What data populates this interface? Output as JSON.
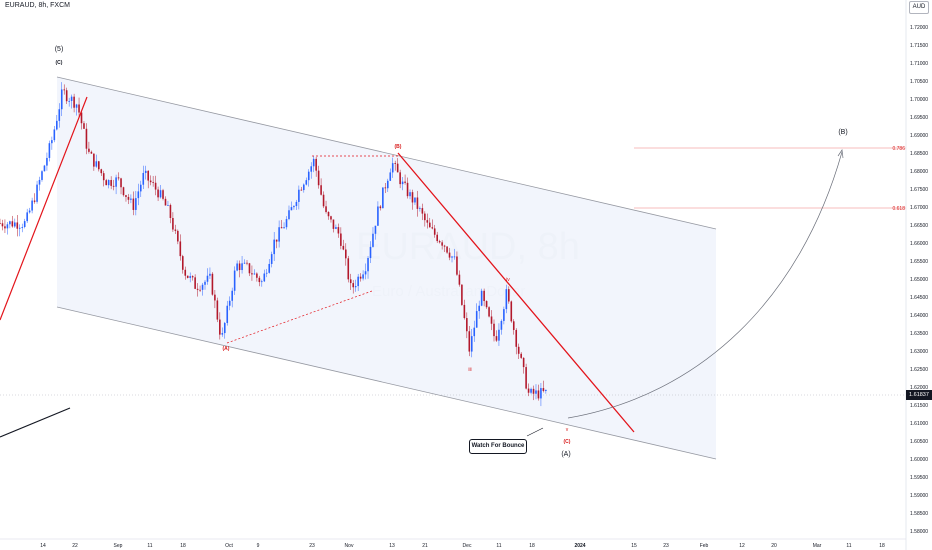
{
  "header": {
    "symbol_line": "EURAUD, 8h, FXCM",
    "currency": "AUD"
  },
  "watermark": {
    "main": "EURAUD, 8h",
    "sub": "Euro / Australian Dollar"
  },
  "colors": {
    "up_candle": "#2962ff",
    "down_candle": "#b2182b",
    "trend_line": "#e3141b",
    "channel": "#9598a1",
    "channel_fill": "#eef2fb",
    "fib_line": "#f4a6a6",
    "label_red": "#d81b1b",
    "projection": "#6b6f7a"
  },
  "labels": {
    "wave5": "(5)",
    "waveC_small": "(C)",
    "waveA_small": "(A)",
    "waveB_small": "(B)",
    "wave_iii": "iii",
    "wave_iv": "iv",
    "wave_v": "v",
    "waveC_red": "(C)",
    "waveA_big": "(A)",
    "waveB_big": "(B)",
    "fib_786": "0.786",
    "fib_618": "0.618",
    "watch_bounce": "Watch For Bounce",
    "current_price": "1.61837"
  },
  "chart_data": {
    "type": "candlestick",
    "title": "EURAUD, 8h, FXCM",
    "x_ticks": [
      "14",
      "22",
      "Sep",
      "11",
      "18",
      "Oct",
      "9",
      "23",
      "Nov",
      "13",
      "21",
      "Dec",
      "11",
      "18",
      "2024",
      "15",
      "23",
      "Feb",
      "12",
      "20",
      "Mar",
      "11",
      "18"
    ],
    "y_ticks": [
      "1.72000",
      "1.71500",
      "1.71000",
      "1.70500",
      "1.70000",
      "1.69500",
      "1.69000",
      "1.68500",
      "1.68000",
      "1.67500",
      "1.67000",
      "1.66500",
      "1.66000",
      "1.65500",
      "1.65000",
      "1.64500",
      "1.64000",
      "1.63500",
      "1.63000",
      "1.62500",
      "1.62000",
      "1.61500",
      "1.61000",
      "1.60500",
      "1.60000",
      "1.59500",
      "1.59000",
      "1.58500",
      "1.58000"
    ],
    "ylim": [
      1.578,
      1.722
    ],
    "last_price": 1.61837,
    "close_path": [
      {
        "date": "2023-08-07",
        "close": 1.6655
      },
      {
        "date": "2023-08-10",
        "close": 1.6745
      },
      {
        "date": "2023-08-14",
        "close": 1.688
      },
      {
        "date": "2023-08-17",
        "close": 1.702
      },
      {
        "date": "2023-08-21",
        "close": 1.6985
      },
      {
        "date": "2023-08-24",
        "close": 1.685
      },
      {
        "date": "2023-08-29",
        "close": 1.677
      },
      {
        "date": "2023-09-01",
        "close": 1.6775
      },
      {
        "date": "2023-09-05",
        "close": 1.67
      },
      {
        "date": "2023-09-08",
        "close": 1.679
      },
      {
        "date": "2023-09-12",
        "close": 1.674
      },
      {
        "date": "2023-09-15",
        "close": 1.668
      },
      {
        "date": "2023-09-19",
        "close": 1.652
      },
      {
        "date": "2023-09-22",
        "close": 1.648
      },
      {
        "date": "2023-09-26",
        "close": 1.65
      },
      {
        "date": "2023-09-29",
        "close": 1.633
      },
      {
        "date": "2023-10-03",
        "close": 1.654
      },
      {
        "date": "2023-10-06",
        "close": 1.653
      },
      {
        "date": "2023-10-10",
        "close": 1.649
      },
      {
        "date": "2023-10-13",
        "close": 1.66
      },
      {
        "date": "2023-10-17",
        "close": 1.667
      },
      {
        "date": "2023-10-20",
        "close": 1.675
      },
      {
        "date": "2023-10-24",
        "close": 1.683
      },
      {
        "date": "2023-10-27",
        "close": 1.668
      },
      {
        "date": "2023-10-31",
        "close": 1.662
      },
      {
        "date": "2023-11-03",
        "close": 1.647
      },
      {
        "date": "2023-11-07",
        "close": 1.654
      },
      {
        "date": "2023-11-10",
        "close": 1.668
      },
      {
        "date": "2023-11-14",
        "close": 1.6825
      },
      {
        "date": "2023-11-17",
        "close": 1.676
      },
      {
        "date": "2023-11-21",
        "close": 1.67
      },
      {
        "date": "2023-11-24",
        "close": 1.664
      },
      {
        "date": "2023-11-28",
        "close": 1.66
      },
      {
        "date": "2023-12-01",
        "close": 1.655
      },
      {
        "date": "2023-12-05",
        "close": 1.63
      },
      {
        "date": "2023-12-08",
        "close": 1.646
      },
      {
        "date": "2023-12-12",
        "close": 1.633
      },
      {
        "date": "2023-12-15",
        "close": 1.646
      },
      {
        "date": "2023-12-18",
        "close": 1.631
      },
      {
        "date": "2023-12-21",
        "close": 1.618
      },
      {
        "date": "2023-12-26",
        "close": 1.61837
      }
    ]
  }
}
